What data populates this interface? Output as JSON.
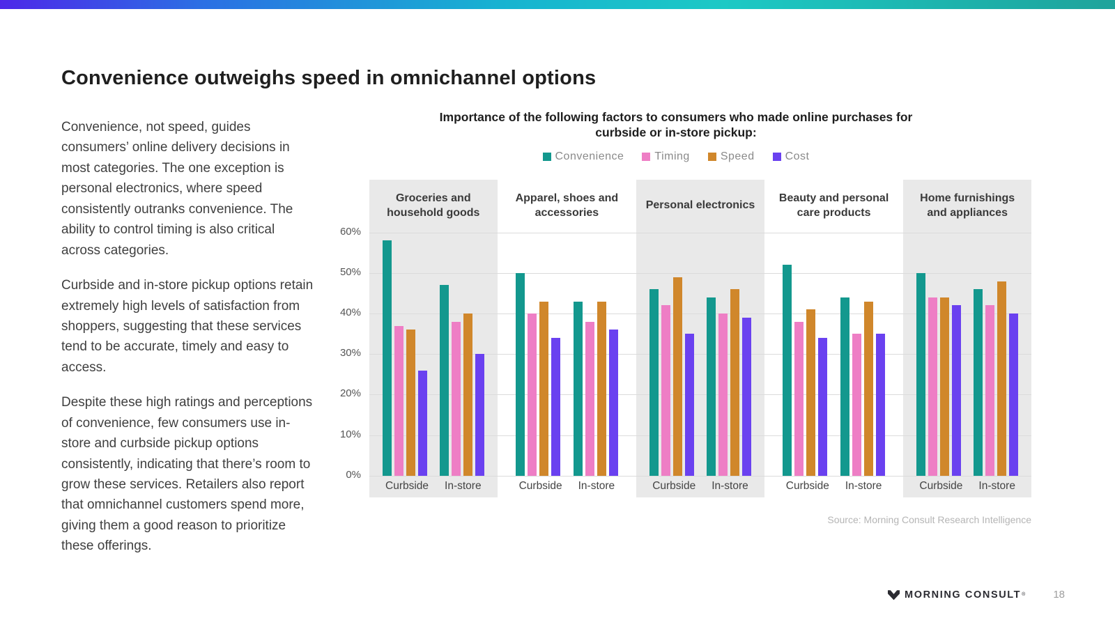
{
  "slide": {
    "title": "Convenience outweighs speed in omnichannel options",
    "paragraphs": [
      "Convenience, not speed, guides consumers’ online delivery decisions in most categories. The one exception is personal electronics, where speed consistently outranks convenience. The ability to control timing is also critical across categories.",
      "Curbside and in-store pickup options retain extremely high levels of satisfaction from shoppers, suggesting that these services tend to be accurate, timely and easy to access.",
      "Despite these high ratings and perceptions of convenience, few consumers use in-store and curbside pickup options consistently, indicating that there’s room to grow these services. Retailers also report that omnichannel customers spend more, giving them a good reason to prioritize these offerings."
    ],
    "source": "Source: Morning Consult Research Intelligence",
    "footer_brand": "MORNING CONSULT",
    "footer_trademark": "®",
    "page_number": "18"
  },
  "chart_data": {
    "type": "bar",
    "title": "Importance of the following factors to consumers who made online purchases for curbside or in-store pickup:",
    "xlabel": "",
    "ylabel": "",
    "ylim": [
      0,
      60
    ],
    "ytick_step": 10,
    "ytick_suffix": "%",
    "grid": true,
    "legend_position": "top",
    "series_names": [
      "Convenience",
      "Timing",
      "Speed",
      "Cost"
    ],
    "series_colors": {
      "Convenience": "#13988e",
      "Timing": "#ee7ec5",
      "Speed": "#d0872b",
      "Cost": "#6a41f0"
    },
    "groups": [
      {
        "label": "Groceries and household goods",
        "subgroups": [
          {
            "label": "Curbside",
            "values": [
              58,
              37,
              36,
              26
            ]
          },
          {
            "label": "In-store",
            "values": [
              47,
              38,
              40,
              30
            ]
          }
        ]
      },
      {
        "label": "Apparel, shoes and accessories",
        "subgroups": [
          {
            "label": "Curbside",
            "values": [
              50,
              40,
              43,
              34
            ]
          },
          {
            "label": "In-store",
            "values": [
              43,
              38,
              43,
              36
            ]
          }
        ]
      },
      {
        "label": "Personal electronics",
        "subgroups": [
          {
            "label": "Curbside",
            "values": [
              46,
              42,
              49,
              35
            ]
          },
          {
            "label": "In-store",
            "values": [
              44,
              40,
              46,
              39
            ]
          }
        ]
      },
      {
        "label": "Beauty and personal care products",
        "subgroups": [
          {
            "label": "Curbside",
            "values": [
              52,
              38,
              41,
              34
            ]
          },
          {
            "label": "In-store",
            "values": [
              44,
              35,
              43,
              35
            ]
          }
        ]
      },
      {
        "label": "Home furnishings and appliances",
        "subgroups": [
          {
            "label": "Curbside",
            "values": [
              50,
              44,
              44,
              42
            ]
          },
          {
            "label": "In-store",
            "values": [
              46,
              42,
              48,
              40
            ]
          }
        ]
      }
    ]
  },
  "theme": {
    "accent_gradient": [
      "#4e28e9",
      "#2b6fe4",
      "#17b3d1",
      "#1cc9c5",
      "#1fa39b"
    ],
    "panel_gray": "#e9e9e9",
    "gridline_color": "#dbdbdb"
  }
}
